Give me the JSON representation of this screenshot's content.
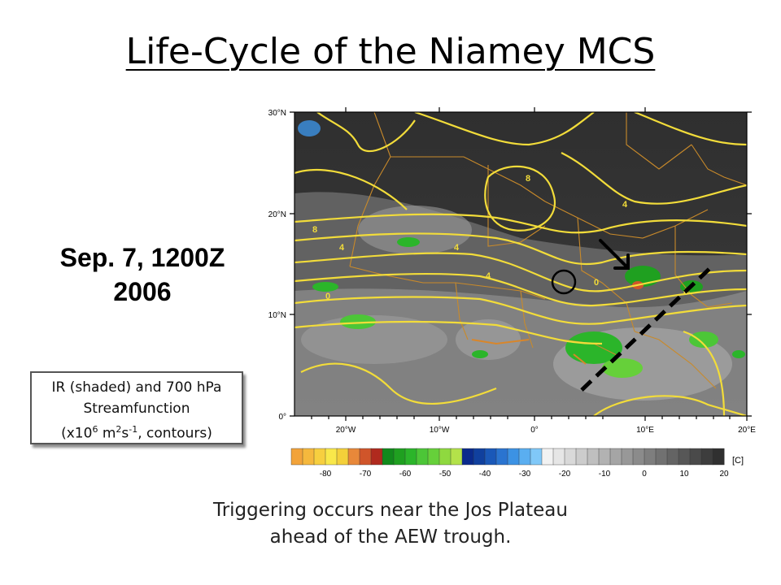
{
  "slide": {
    "title": "Life-Cycle of the Niamey MCS",
    "date_line1": "Sep. 7, 1200Z",
    "date_line2": "2006",
    "caption_line1": "IR (shaded) and 700 hPa",
    "caption_line2": "Streamfunction",
    "caption_line3_pre": "(x10",
    "caption_line3_sup1": "6",
    "caption_line3_mid": " m",
    "caption_line3_sup2": "2",
    "caption_line3_mid2": "s",
    "caption_line3_sup3": "-1",
    "caption_line3_post": ", contours)",
    "bottom_line1": "Triggering occurs near the Jos Plateau",
    "bottom_line2": "ahead of the AEW trough."
  },
  "map": {
    "lat_labels": [
      "30°N",
      "20°N",
      "10°N",
      "0°"
    ],
    "lon_labels": [
      "20°W",
      "10°W",
      "0°",
      "10°E",
      "20°E"
    ],
    "contour_labels": [
      "8",
      "4",
      "4",
      "4",
      "0",
      "4",
      "8",
      "0",
      "0"
    ],
    "colorbar_ticks": [
      "-80",
      "-70",
      "-60",
      "-50",
      "-40",
      "-30",
      "-20",
      "-10",
      "0",
      "10",
      "20"
    ],
    "colorbar_unit": "[C]",
    "colorbar_colors": [
      "#f2a33a",
      "#f5b83d",
      "#f7cf3f",
      "#f9e84a",
      "#f4d03a",
      "#e8883a",
      "#d0552a",
      "#b02a1e",
      "#128a1c",
      "#1fa020",
      "#2bb52a",
      "#4cc637",
      "#66d03a",
      "#8fd93f",
      "#b3e24a",
      "#0a2a8c",
      "#10409e",
      "#1a58b8",
      "#2a74d0",
      "#3c92e4",
      "#5aaef0",
      "#80c8f8",
      "#f2f2f2",
      "#e6e6e6",
      "#d9d9d9",
      "#cccccc",
      "#bfbfbf",
      "#b2b2b2",
      "#a5a5a5",
      "#989898",
      "#8b8b8b",
      "#7e7e7e",
      "#717171",
      "#646464",
      "#575757",
      "#4a4a4a",
      "#3d3d3d",
      "#303030"
    ],
    "colors": {
      "contour": "#f2dc3a",
      "border": "#c98a2a",
      "background_dark": "#3a3a3a"
    }
  }
}
